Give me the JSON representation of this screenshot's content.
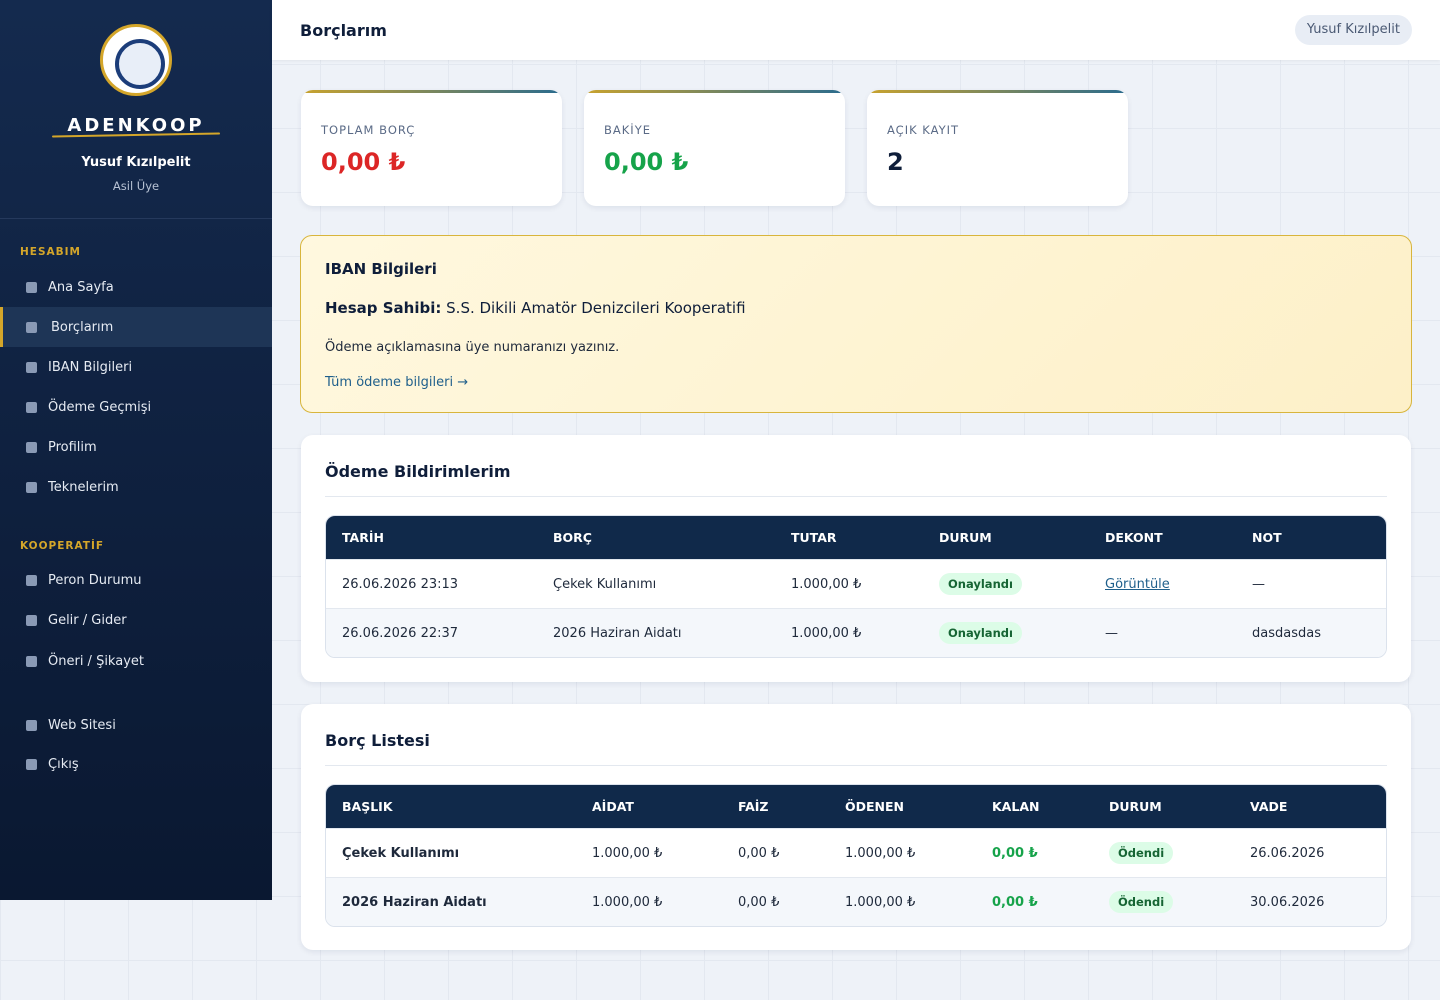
{
  "sidebar": {
    "brand": "ADENKOOP",
    "user_name": "Yusuf Kızılpelit",
    "user_role": "Asil Üye",
    "sections": [
      {
        "title": "HESABIM",
        "items": [
          "Ana Sayfa",
          "Borçlarım",
          "IBAN Bilgileri",
          "Ödeme Geçmişi",
          "Profilim",
          "Teknelerim"
        ]
      },
      {
        "title": "KOOPERATİF",
        "items": [
          "Peron Durumu",
          "Gelir / Gider",
          "Öneri / Şikayet"
        ]
      },
      {
        "items": [
          "Web Sitesi",
          "Çıkış"
        ]
      }
    ]
  },
  "header": {
    "title": "Borçlarım",
    "user": "Yusuf Kızılpelit"
  },
  "stats": [
    {
      "label": "TOPLAM BORÇ",
      "value": "0,00 ₺",
      "color": "#dc2626"
    },
    {
      "label": "BAKİYE",
      "value": "0,00 ₺",
      "color": "#16a34a"
    },
    {
      "label": "AÇIK KAYIT",
      "value": "2",
      "color": "#0f1e3a"
    }
  ],
  "iban": {
    "title": "IBAN Bilgileri",
    "holder_label": "Hesap Sahibi:",
    "holder": "S.S. Dikili Amatör Denizcileri Kooperatifi",
    "note": "Ödeme açıklamasına üye numaranızı yazınız.",
    "link": "Tüm ödeme bilgileri →"
  },
  "notifications": {
    "title": "Ödeme Bildirimlerim",
    "columns": [
      "TARİH",
      "BORÇ",
      "TUTAR",
      "DURUM",
      "DEKONT",
      "NOT"
    ],
    "rows": [
      [
        "26.06.2026 23:13",
        "Çekek Kullanımı",
        "1.000,00 ₺",
        "Onaylandı",
        "Görüntüle",
        "—"
      ],
      [
        "26.06.2026 22:37",
        "2026 Haziran Aidatı",
        "1.000,00 ₺",
        "Onaylandı",
        "—",
        "dasdasdas"
      ]
    ]
  },
  "debts": {
    "title": "Borç Listesi",
    "columns": [
      "BAŞLIK",
      "AİDAT",
      "FAİZ",
      "ÖDENEN",
      "KALAN",
      "DURUM",
      "VADE"
    ],
    "rows": [
      [
        "Çekek Kullanımı",
        "1.000,00 ₺",
        "0,00 ₺",
        "1.000,00 ₺",
        "0,00 ₺",
        "Ödendi",
        "26.06.2026"
      ],
      [
        "2026 Haziran Aidatı",
        "1.000,00 ₺",
        "0,00 ₺",
        "1.000,00 ₺",
        "0,00 ₺",
        "Ödendi",
        "30.06.2026"
      ]
    ]
  }
}
